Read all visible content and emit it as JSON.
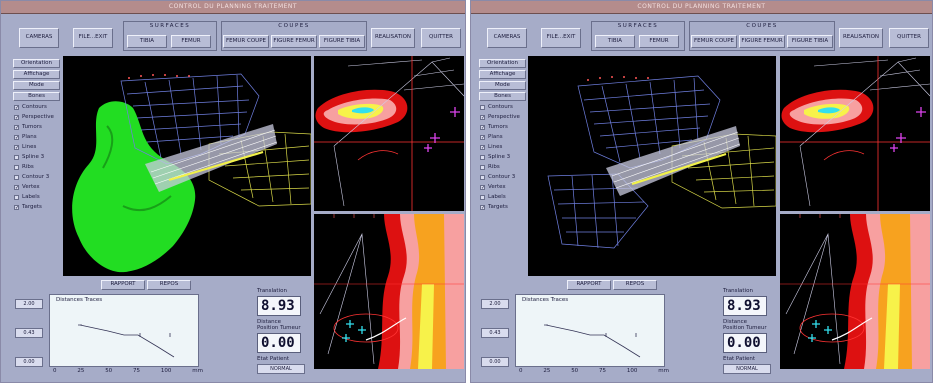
{
  "windows": [
    {
      "id": "left",
      "title": "CONTROL DU PLANNING TRAITEMENT",
      "toolbar": {
        "camera_label": "CAMERAS",
        "file_label": "FILE...EXIT",
        "surfaces_group": "SURFACES",
        "surfaces": [
          "TIBIA",
          "FEMUR"
        ],
        "coupes_group": "COUPES",
        "coupes": [
          "FEMUR COUPE",
          "FIGURE FEMUR",
          "FIGURE TIBIA"
        ],
        "realisation_label": "REALISATION",
        "quit_label": "QUITTER"
      },
      "sidebar": {
        "buttons": [
          "Orientation",
          "Affichage",
          "Mode",
          "Bones"
        ],
        "checks": [
          {
            "label": "Contours",
            "checked": true
          },
          {
            "label": "Perspective",
            "checked": true
          },
          {
            "label": "Tumors",
            "checked": true
          },
          {
            "label": "Plans",
            "checked": true
          },
          {
            "label": "Lines",
            "checked": true
          },
          {
            "label": "Spline 3",
            "checked": false
          },
          {
            "label": "Ribs",
            "checked": false
          },
          {
            "label": "Contour 3",
            "checked": false
          },
          {
            "label": "Vertex",
            "checked": true
          },
          {
            "label": "Labels",
            "checked": false
          },
          {
            "label": "Targets",
            "checked": true
          }
        ]
      },
      "bottom": {
        "buttons": [
          "RAPPORT",
          "REPOS"
        ],
        "plot_title": "Distances Traces",
        "y_fields": [
          "2.00",
          "0.43",
          "0.00"
        ],
        "x_ticks": [
          "0",
          "25",
          "50",
          "75",
          "100"
        ],
        "x_unit": "mm",
        "fraction_label": "Translation",
        "fraction_value": "8.93",
        "distance_label": "Distance",
        "distance_sub": "Position Tumeur",
        "distance_value": "0.00",
        "status_label": "Etat Patient",
        "status_value": "NORMAL"
      }
    },
    {
      "id": "right",
      "title": "CONTROL DU PLANNING TRAITEMENT",
      "toolbar": {
        "camera_label": "CAMERAS",
        "file_label": "FILE...EXIT",
        "surfaces_group": "SURFACES",
        "surfaces": [
          "TIBIA",
          "FEMUR"
        ],
        "coupes_group": "COUPES",
        "coupes": [
          "FEMUR COUPE",
          "FIGURE FEMUR",
          "FIGURE TIBIA"
        ],
        "realisation_label": "REALISATION",
        "quit_label": "QUITTER"
      },
      "sidebar": {
        "buttons": [
          "Orientation",
          "Affichage",
          "Mode",
          "Bones"
        ],
        "checks": [
          {
            "label": "Contours",
            "checked": false
          },
          {
            "label": "Perspective",
            "checked": true
          },
          {
            "label": "Tumors",
            "checked": true
          },
          {
            "label": "Plans",
            "checked": true
          },
          {
            "label": "Lines",
            "checked": true
          },
          {
            "label": "Spline 3",
            "checked": false
          },
          {
            "label": "Ribs",
            "checked": false
          },
          {
            "label": "Contour 3",
            "checked": false
          },
          {
            "label": "Vertex",
            "checked": true
          },
          {
            "label": "Labels",
            "checked": false
          },
          {
            "label": "Targets",
            "checked": true
          }
        ]
      },
      "bottom": {
        "buttons": [
          "RAPPORT",
          "REPOS"
        ],
        "plot_title": "Distances Traces",
        "y_fields": [
          "2.00",
          "0.43",
          "0.00"
        ],
        "x_ticks": [
          "0",
          "25",
          "50",
          "75",
          "100"
        ],
        "x_unit": "mm",
        "fraction_label": "Translation",
        "fraction_value": "8.93",
        "distance_label": "Distance",
        "distance_sub": "Position Tumeur",
        "distance_value": "0.00",
        "status_label": "Etat Patient",
        "status_value": "NORMAL"
      }
    }
  ],
  "colors": {
    "panel": "#a6acc8",
    "titlebar": "#b48c8c",
    "view_bg": "#000000",
    "bone": "#22dd22",
    "mesh": "#6f7fe0",
    "beam": "#f2f24a",
    "heat_red": "#dd1111",
    "heat_pink": "#f7a0a0",
    "heat_orange": "#f7a21f",
    "heat_yellow": "#f7f24a",
    "target_cyan": "#33e0ee",
    "marker_magenta": "#dd44ee"
  }
}
